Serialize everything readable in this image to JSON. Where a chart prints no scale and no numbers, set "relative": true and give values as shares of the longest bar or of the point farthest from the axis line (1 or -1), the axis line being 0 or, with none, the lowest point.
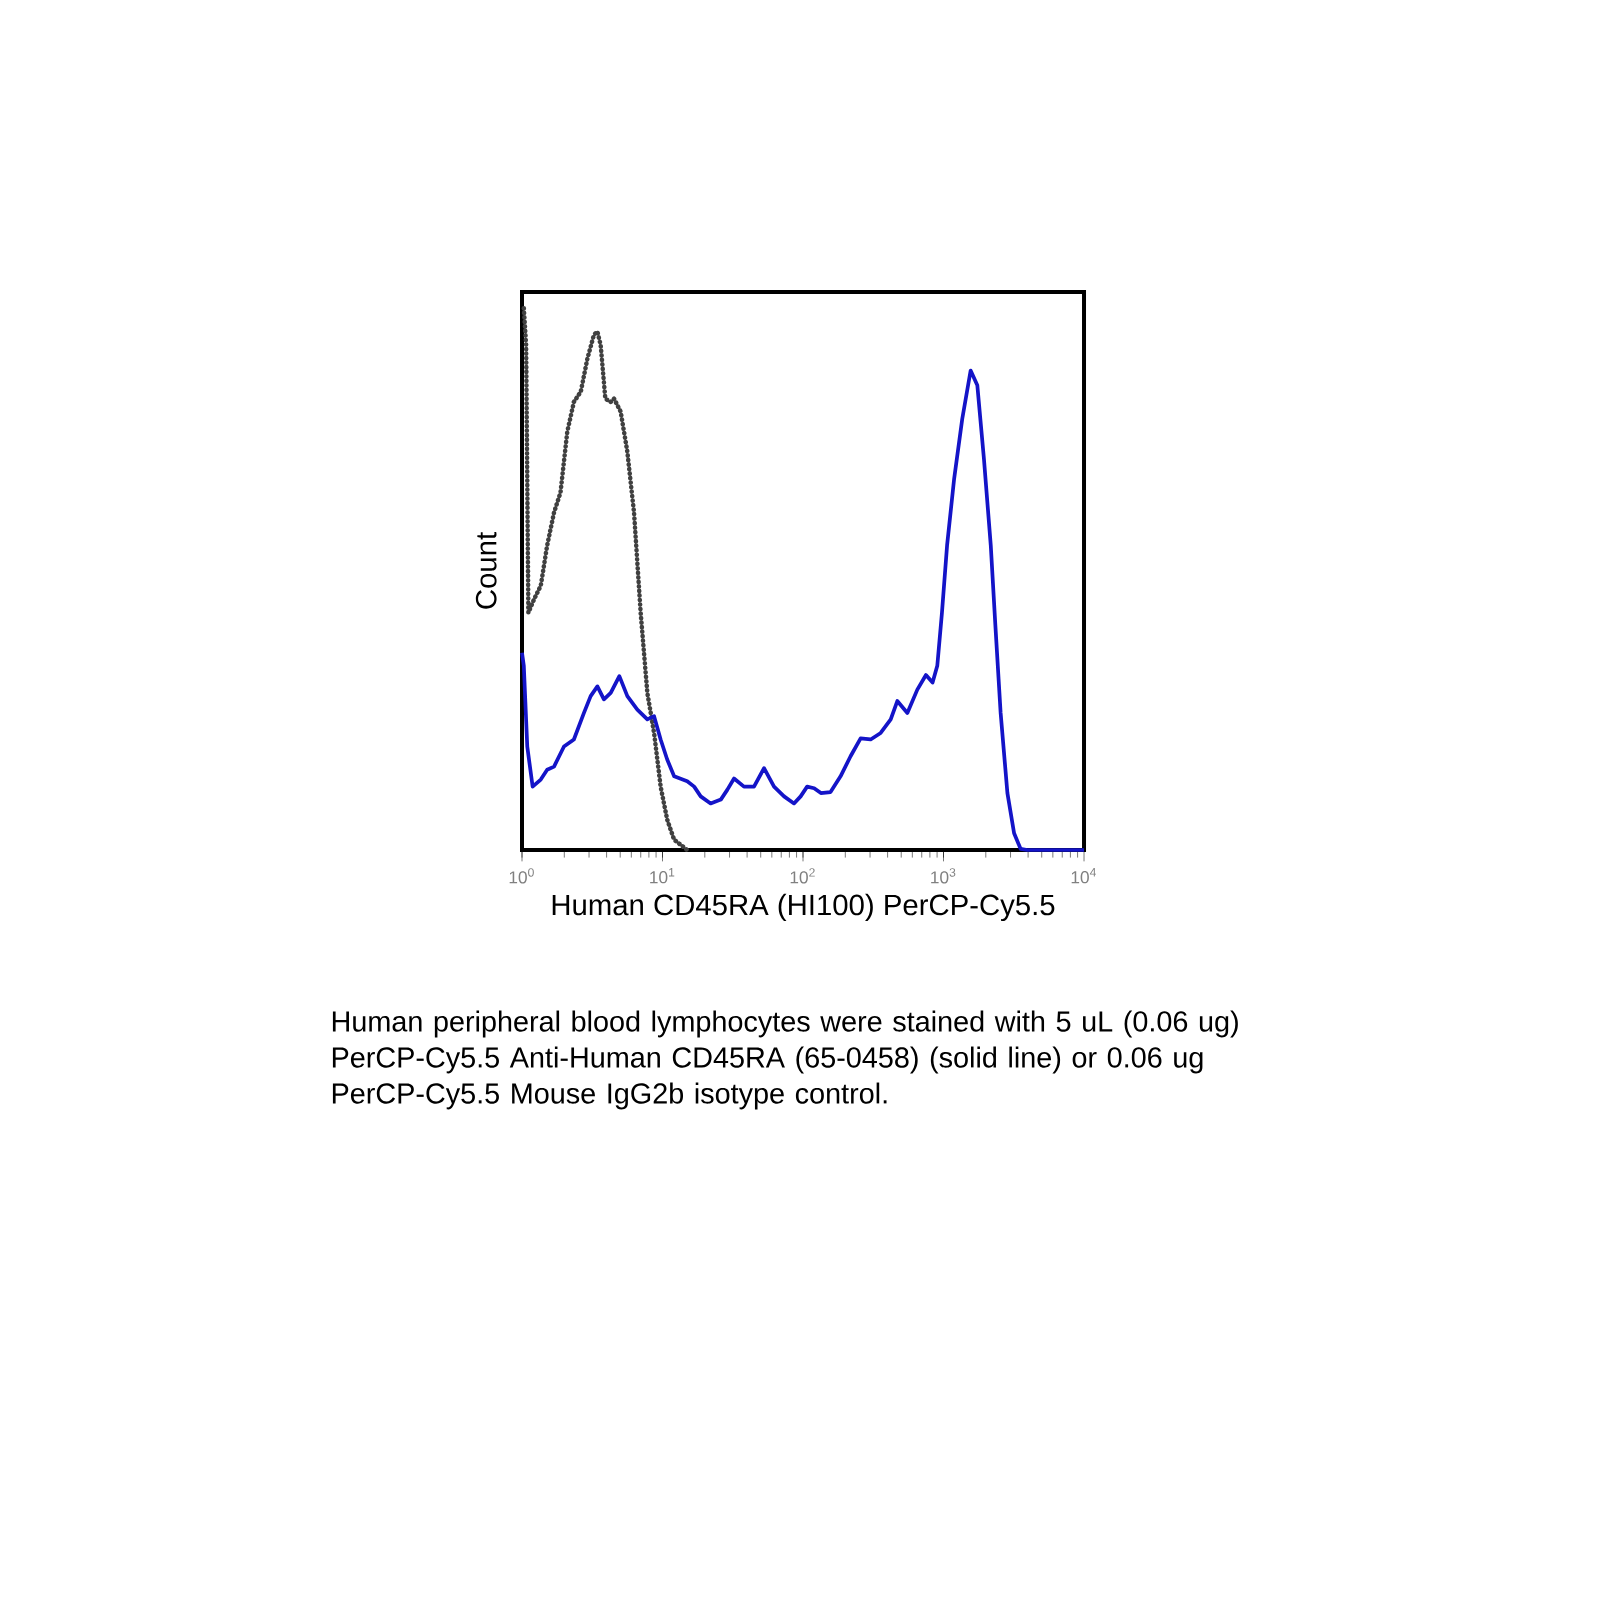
{
  "chart_data": {
    "type": "line",
    "relative": true,
    "xlabel": "Human CD45RA (HI100) PerCP-Cy5.5",
    "ylabel": "Count",
    "log": "x",
    "xlim": [
      1,
      10000
    ],
    "xticks": [
      {
        "value": 1,
        "label": "10$^{0}$"
      },
      {
        "value": 10,
        "label": "10$^{1}$"
      },
      {
        "value": 100,
        "label": "10$^{2}$"
      },
      {
        "value": 1000,
        "label": "10$^{3}$"
      },
      {
        "value": 10000,
        "label": "10$^{4}$"
      }
    ],
    "series": [
      {
        "color": "#404040",
        "line_style": "dotted",
        "x": [
          1.03,
          1.07,
          1.09,
          1.11,
          1.22,
          1.36,
          1.51,
          1.69,
          1.88,
          2.1,
          2.34,
          2.62,
          2.92,
          3.25,
          3.44,
          3.63,
          3.92,
          4.28,
          4.52,
          5.04,
          5.62,
          6.27,
          6.99,
          7.8,
          8.71,
          9.7,
          10.8,
          12.1,
          15.0
        ],
        "values": [
          1.0,
          0.932,
          0.685,
          0.438,
          0.463,
          0.488,
          0.562,
          0.623,
          0.66,
          0.772,
          0.827,
          0.846,
          0.907,
          0.951,
          0.957,
          0.932,
          0.833,
          0.827,
          0.833,
          0.809,
          0.735,
          0.623,
          0.438,
          0.29,
          0.216,
          0.117,
          0.056,
          0.019,
          0
        ]
      },
      {
        "color": "#1414c8",
        "line_style": "solid",
        "x": [
          1,
          1.03,
          1.09,
          1.19,
          1.36,
          1.51,
          1.69,
          1.99,
          2.34,
          2.76,
          3.08,
          3.44,
          3.83,
          4.28,
          4.93,
          5.62,
          6.62,
          7.8,
          8.71,
          9.7,
          10.8,
          12.1,
          15.0,
          16.8,
          18.7,
          22.0,
          26.0,
          28.9,
          32.3,
          38.0,
          44.8,
          52.8,
          62.2,
          73.3,
          86.3,
          96.2,
          107,
          120,
          134,
          157,
          185,
          218,
          257,
          303,
          357,
          421,
          469,
          553,
          651,
          750,
          836,
          903,
          975,
          1060,
          1190,
          1360,
          1560,
          1740,
          1940,
          2170,
          2340,
          2550,
          2850,
          3180,
          3540,
          3950,
          10000
        ],
        "values": [
          0.364,
          0.34,
          0.191,
          0.117,
          0.13,
          0.148,
          0.154,
          0.191,
          0.204,
          0.253,
          0.284,
          0.302,
          0.278,
          0.29,
          0.321,
          0.284,
          0.259,
          0.241,
          0.247,
          0.204,
          0.167,
          0.136,
          0.127,
          0.117,
          0.099,
          0.086,
          0.093,
          0.111,
          0.132,
          0.117,
          0.117,
          0.151,
          0.117,
          0.099,
          0.086,
          0.099,
          0.117,
          0.114,
          0.105,
          0.107,
          0.136,
          0.173,
          0.206,
          0.204,
          0.216,
          0.241,
          0.275,
          0.253,
          0.296,
          0.323,
          0.309,
          0.34,
          0.438,
          0.562,
          0.685,
          0.796,
          0.885,
          0.858,
          0.722,
          0.562,
          0.414,
          0.253,
          0.105,
          0.031,
          0.002,
          0,
          0
        ]
      }
    ],
    "annotations": [
      "Human peripheral blood lymphocytes were stained with 5 uL (0.06 ug) PerCP-Cy5.5 Anti-Human CD45RA (65-0458) (solid line) or 0.06 ug PerCP-Cy5.5 Mouse IgG2b isotype control."
    ]
  }
}
